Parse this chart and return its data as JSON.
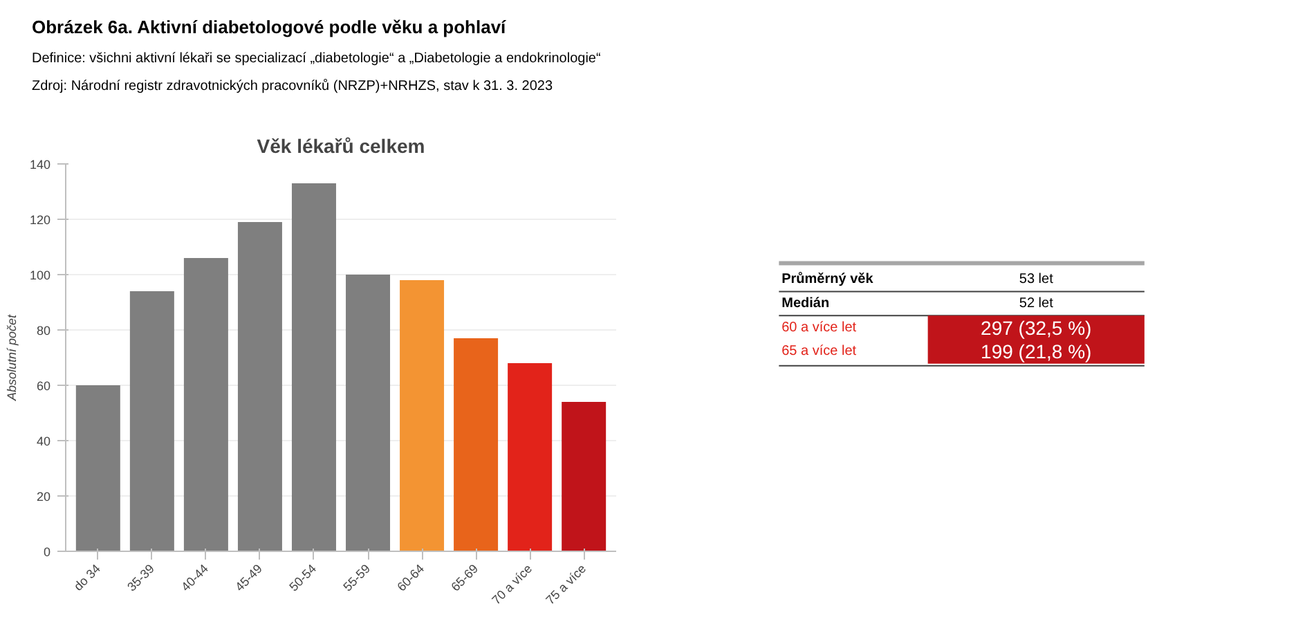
{
  "chart_data": {
    "type": "bar",
    "title": "Obrázek 6a. Aktivní diabetologové podle věku a pohlaví",
    "subtitle": "Věk lékařů celkem",
    "ylabel": "Absolutní počet",
    "categories": [
      "do 34",
      "35-39",
      "40-44",
      "45-49",
      "50-54",
      "55-59",
      "60-64",
      "65-69",
      "70 a více",
      "75 a více"
    ],
    "values": [
      60,
      94,
      106,
      119,
      133,
      100,
      98,
      77,
      68,
      54
    ],
    "colors": [
      "#7f7f7f",
      "#7f7f7f",
      "#7f7f7f",
      "#7f7f7f",
      "#7f7f7f",
      "#7f7f7f",
      "#f39433",
      "#e8641b",
      "#e2231a",
      "#c0141a"
    ],
    "ylim": [
      0,
      140
    ],
    "yticks": [
      0,
      20,
      40,
      60,
      80,
      100,
      120,
      140
    ],
    "grid": "y",
    "annotations": [
      "Definice: všichni aktivní lékaři se specializací „diabetologie“ a „Diabetologie a endokrinologie“",
      "Zdroj: Národní registr zdravotnických pracovníků (NRZP)+NRHZS, stav k 31. 3. 2023",
      "Průměrný věk",
      "53 let",
      "Medián",
      "52 let",
      "60 a více let",
      "297 (32,5 %)",
      "65 a více let",
      "199 (21,8 %)"
    ]
  }
}
